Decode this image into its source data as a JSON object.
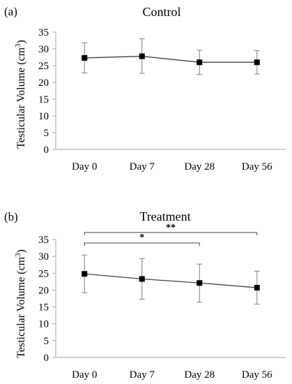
{
  "figure": {
    "panels": [
      {
        "label": "(a)",
        "title": "Control",
        "ylabel": "Testicular Volume (cm",
        "ylabel_sup": "3",
        "ylabel_end": ")"
      },
      {
        "label": "(b)",
        "title": "Treatment",
        "ylabel": "Testicular Volume (cm",
        "ylabel_sup": "3",
        "ylabel_end": ")"
      }
    ]
  },
  "colors": {
    "line": "#404040",
    "marker": "#000000",
    "error_bar": "#7f7f7f",
    "axis": "#a6a6a6",
    "bracket": "#404040"
  },
  "chart_data": [
    {
      "type": "line",
      "title": "Control",
      "xlabel": "",
      "ylabel": "Testicular Volume (cm3)",
      "categories": [
        "Day 0",
        "Day 7",
        "Day 28",
        "Day 56"
      ],
      "yticks": [
        0,
        5,
        10,
        15,
        20,
        25,
        30,
        35
      ],
      "ylim": [
        0,
        35
      ],
      "grid": false,
      "series": [
        {
          "values": [
            27.3,
            27.8,
            26.0,
            26.0
          ],
          "error_low": [
            22.8,
            22.7,
            22.4,
            22.5
          ],
          "error_high": [
            31.8,
            33.0,
            29.6,
            29.5
          ]
        }
      ],
      "significance": []
    },
    {
      "type": "line",
      "title": "Treatment",
      "xlabel": "",
      "ylabel": "Testicular Volume (cm3)",
      "categories": [
        "Day 0",
        "Day 7",
        "Day 28",
        "Day 56"
      ],
      "yticks": [
        0,
        5,
        10,
        15,
        20,
        25,
        30,
        35
      ],
      "ylim": [
        0,
        35
      ],
      "grid": false,
      "series": [
        {
          "values": [
            24.8,
            23.3,
            22.1,
            20.7
          ],
          "error_low": [
            19.2,
            17.3,
            16.4,
            15.8
          ],
          "error_high": [
            30.4,
            29.3,
            27.7,
            25.6
          ]
        }
      ],
      "significance": [
        {
          "from": "Day 0",
          "to": "Day 28",
          "label": "*"
        },
        {
          "from": "Day 0",
          "to": "Day 56",
          "label": "**"
        }
      ]
    }
  ]
}
